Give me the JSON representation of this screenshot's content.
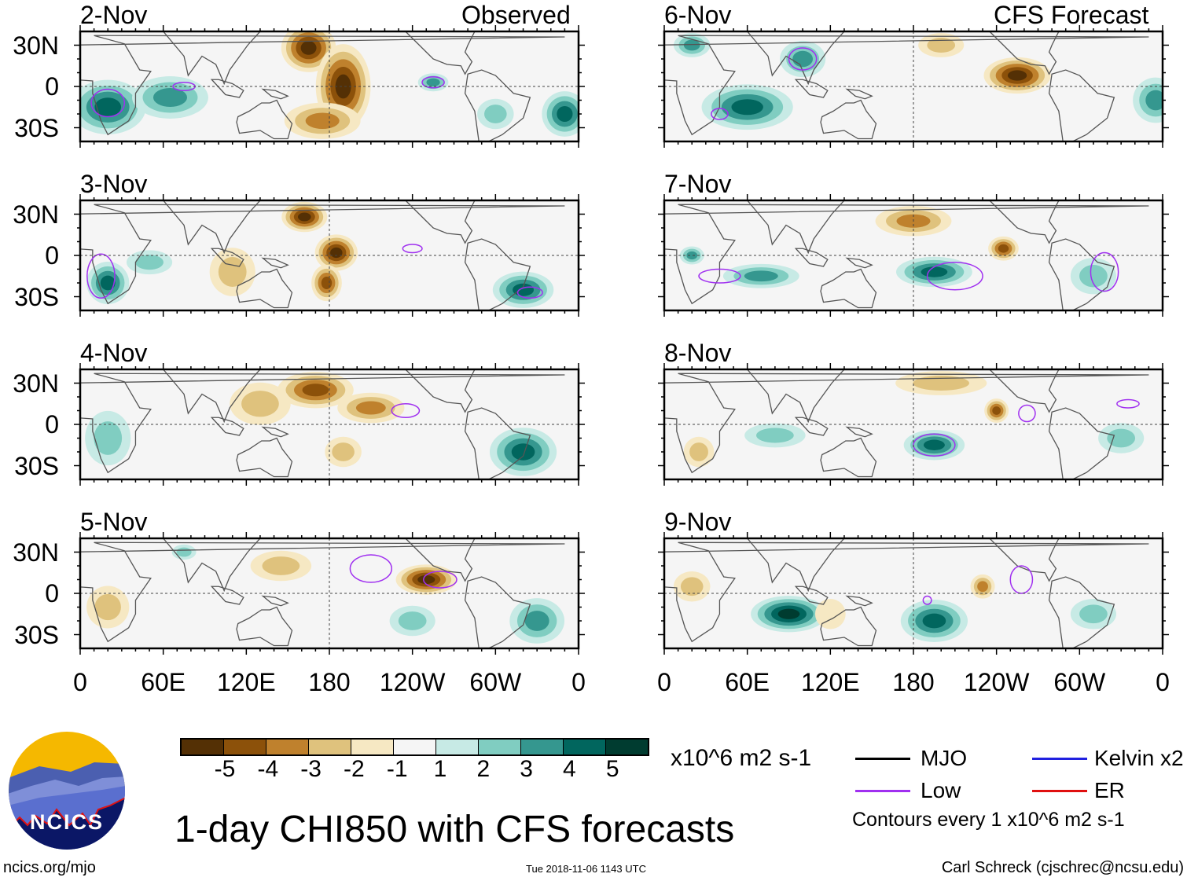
{
  "columns": {
    "left_label": "Observed",
    "right_label": "CFS Forecast"
  },
  "lat_labels": [
    "30N",
    "0",
    "30S"
  ],
  "lon_labels": [
    "0",
    "60E",
    "120E",
    "180",
    "120W",
    "60W",
    "0"
  ],
  "colorbar": {
    "labels": [
      "-5",
      "-4",
      "-3",
      "-2",
      "-1",
      "1",
      "2",
      "3",
      "4",
      "5"
    ],
    "colors": [
      "#543005",
      "#8c510a",
      "#bf812d",
      "#dfc27d",
      "#f6e8c3",
      "#f5f5f5",
      "#c7eae5",
      "#80cdc1",
      "#35978f",
      "#01665e",
      "#003c30"
    ],
    "units": "x10^6 m2 s-1"
  },
  "legend": {
    "items": [
      {
        "label": "MJO",
        "color": "#000000"
      },
      {
        "label": "Kelvin x2",
        "color": "#2020e0"
      },
      {
        "label": "Low",
        "color": "#a030f0"
      },
      {
        "label": "ER",
        "color": "#e01010"
      }
    ],
    "note": "Contours every 1 x10^6 m2 s-1"
  },
  "title": "1-day CHI850 with CFS forecasts",
  "timestamp": "Tue 2018-11-06 1143 UTC",
  "author": "Carl Schreck (cjschrec@ncsu.edu)",
  "logo": {
    "text": "NCICS",
    "url_text": "ncics.org/mjo"
  },
  "chart_data": {
    "type": "heatmap",
    "variable": "CHI850 anomaly",
    "units": "x10^6 m2 s-1",
    "xlim": [
      0,
      360
    ],
    "ylim": [
      -40,
      40
    ],
    "panels": [
      {
        "date": "2-Nov",
        "source": "Observed",
        "blobs": [
          [
            165,
            28,
            18,
            16,
            -5
          ],
          [
            190,
            0,
            18,
            28,
            -5
          ],
          [
            175,
            -25,
            25,
            12,
            -3
          ],
          [
            20,
            -15,
            25,
            18,
            4
          ],
          [
            65,
            -8,
            25,
            14,
            3
          ],
          [
            255,
            3,
            10,
            6,
            3
          ],
          [
            350,
            -20,
            15,
            15,
            4
          ],
          [
            300,
            -20,
            12,
            10,
            2
          ]
        ],
        "low_contours": [
          [
            20,
            -12,
            12,
            10
          ],
          [
            75,
            0,
            8,
            3
          ],
          [
            255,
            3,
            8,
            4
          ]
        ]
      },
      {
        "date": "3-Nov",
        "source": "Observed",
        "blobs": [
          [
            162,
            28,
            15,
            10,
            -5
          ],
          [
            185,
            2,
            14,
            12,
            -5
          ],
          [
            178,
            -20,
            10,
            12,
            -4
          ],
          [
            20,
            -20,
            14,
            14,
            4
          ],
          [
            320,
            -25,
            20,
            12,
            4
          ],
          [
            110,
            -12,
            15,
            16,
            -2
          ],
          [
            50,
            -5,
            15,
            8,
            2
          ]
        ],
        "low_contours": [
          [
            15,
            -15,
            10,
            16
          ],
          [
            240,
            5,
            7,
            3
          ],
          [
            325,
            -27,
            9,
            4
          ]
        ]
      },
      {
        "date": "4-Nov",
        "source": "Observed",
        "blobs": [
          [
            170,
            25,
            25,
            12,
            -4
          ],
          [
            210,
            12,
            22,
            10,
            -3
          ],
          [
            130,
            15,
            20,
            14,
            -2
          ],
          [
            320,
            -20,
            22,
            16,
            4
          ],
          [
            20,
            -10,
            15,
            18,
            2
          ],
          [
            190,
            -20,
            12,
            10,
            -2
          ]
        ],
        "low_contours": [
          [
            235,
            10,
            10,
            5
          ]
        ]
      },
      {
        "date": "5-Nov",
        "source": "Observed",
        "blobs": [
          [
            250,
            10,
            20,
            10,
            -5
          ],
          [
            240,
            -20,
            15,
            10,
            2
          ],
          [
            330,
            -20,
            18,
            15,
            3
          ],
          [
            75,
            30,
            8,
            5,
            2
          ],
          [
            145,
            20,
            20,
            10,
            -2
          ],
          [
            20,
            -10,
            14,
            14,
            -2
          ]
        ],
        "low_contours": [
          [
            210,
            18,
            15,
            10
          ],
          [
            260,
            10,
            12,
            6
          ]
        ]
      },
      {
        "date": "6-Nov",
        "source": "CFS Forecast",
        "blobs": [
          [
            255,
            8,
            22,
            12,
            -5
          ],
          [
            60,
            -15,
            30,
            15,
            4
          ],
          [
            20,
            30,
            12,
            8,
            3
          ],
          [
            100,
            20,
            15,
            12,
            3
          ],
          [
            355,
            -10,
            15,
            15,
            3
          ],
          [
            200,
            30,
            15,
            8,
            -2
          ]
        ],
        "low_contours": [
          [
            100,
            20,
            10,
            8
          ],
          [
            40,
            -20,
            6,
            4
          ]
        ]
      },
      {
        "date": "7-Nov",
        "source": "CFS Forecast",
        "blobs": [
          [
            180,
            25,
            25,
            10,
            -3
          ],
          [
            245,
            5,
            10,
            8,
            -4
          ],
          [
            195,
            -12,
            25,
            10,
            4
          ],
          [
            70,
            -15,
            25,
            8,
            3
          ],
          [
            310,
            -15,
            15,
            12,
            2
          ],
          [
            20,
            0,
            8,
            6,
            3
          ]
        ],
        "low_contours": [
          [
            210,
            -15,
            20,
            10
          ],
          [
            40,
            -15,
            15,
            5
          ],
          [
            318,
            -12,
            10,
            14
          ]
        ]
      },
      {
        "date": "8-Nov",
        "source": "CFS Forecast",
        "blobs": [
          [
            240,
            10,
            8,
            8,
            -4
          ],
          [
            195,
            -15,
            20,
            10,
            4
          ],
          [
            200,
            30,
            30,
            8,
            -2
          ],
          [
            330,
            -10,
            15,
            10,
            2
          ],
          [
            25,
            -20,
            10,
            10,
            -2
          ],
          [
            80,
            -8,
            20,
            8,
            2
          ]
        ],
        "low_contours": [
          [
            195,
            -15,
            15,
            8
          ],
          [
            262,
            8,
            6,
            6
          ],
          [
            335,
            15,
            8,
            3
          ]
        ]
      },
      {
        "date": "9-Nov",
        "source": "CFS Forecast",
        "blobs": [
          [
            230,
            5,
            8,
            8,
            -3
          ],
          [
            90,
            -15,
            25,
            12,
            5
          ],
          [
            195,
            -20,
            22,
            14,
            4
          ],
          [
            310,
            -15,
            15,
            10,
            2
          ],
          [
            20,
            5,
            12,
            10,
            -2
          ],
          [
            120,
            -15,
            10,
            10,
            -1
          ]
        ],
        "low_contours": [
          [
            258,
            10,
            8,
            10
          ],
          [
            190,
            -5,
            3,
            3
          ]
        ]
      }
    ]
  }
}
